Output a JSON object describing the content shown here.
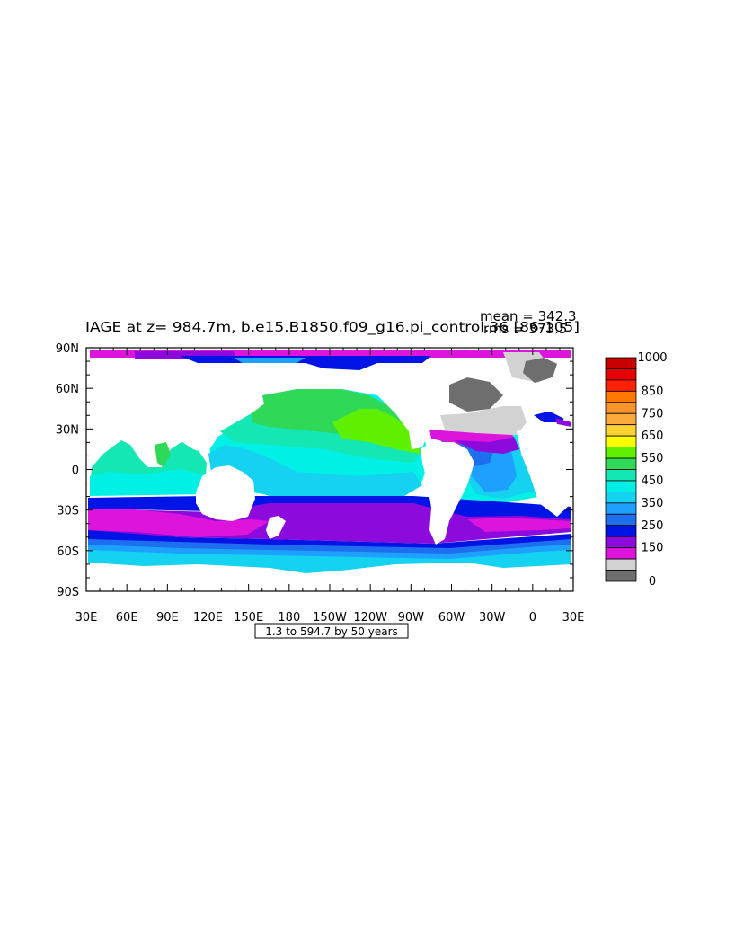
{
  "title": "IAGE at z= 984.7m, b.e15.B1850.f09_g16.pi_control.36 [86-105]",
  "stats": {
    "mean": "mean = 342.3",
    "rms": "rms = 373.5"
  },
  "map": {
    "projection": "cylindrical equidistant",
    "lon_range": [
      30,
      390
    ],
    "lat_range": [
      -90,
      90
    ],
    "lat_labels": [
      "90N",
      "60N",
      "30N",
      "0",
      "30S",
      "60S",
      "90S"
    ],
    "lat_values": [
      90,
      60,
      30,
      0,
      -30,
      -60,
      -90
    ],
    "lon_labels": [
      "30E",
      "60E",
      "90E",
      "120E",
      "150E",
      "180",
      "150W",
      "120W",
      "90W",
      "60W",
      "30W",
      "0",
      "30E"
    ],
    "lon_values": [
      30,
      60,
      90,
      120,
      150,
      180,
      210,
      240,
      270,
      300,
      330,
      360,
      390
    ],
    "land_color": "#ffffff"
  },
  "contour_info": "1.3 to 594.7 by 50 years",
  "colorbar": {
    "labels": [
      {
        "text": "1000",
        "value": 1000
      },
      {
        "text": "850",
        "value": 850
      },
      {
        "text": "750",
        "value": 750
      },
      {
        "text": "650",
        "value": 650
      },
      {
        "text": "550",
        "value": 550
      },
      {
        "text": "450",
        "value": 450
      },
      {
        "text": "350",
        "value": 350
      },
      {
        "text": "250",
        "value": 250
      },
      {
        "text": "150",
        "value": 150
      },
      {
        "text": "0",
        "value": 0
      }
    ],
    "bins": [
      {
        "range": [
          950,
          1000
        ],
        "color": "#c80000"
      },
      {
        "range": [
          900,
          950
        ],
        "color": "#e60000"
      },
      {
        "range": [
          850,
          900
        ],
        "color": "#ff2000"
      },
      {
        "range": [
          800,
          850
        ],
        "color": "#ff7800"
      },
      {
        "range": [
          750,
          800
        ],
        "color": "#f89428"
      },
      {
        "range": [
          700,
          750
        ],
        "color": "#fbaa3c"
      },
      {
        "range": [
          650,
          700
        ],
        "color": "#ffd230"
      },
      {
        "range": [
          600,
          650
        ],
        "color": "#ffff00"
      },
      {
        "range": [
          550,
          600
        ],
        "color": "#5ef000"
      },
      {
        "range": [
          500,
          550
        ],
        "color": "#30d858"
      },
      {
        "range": [
          450,
          500
        ],
        "color": "#14e6b4"
      },
      {
        "range": [
          400,
          450
        ],
        "color": "#00f0e6"
      },
      {
        "range": [
          350,
          400
        ],
        "color": "#14d2f0"
      },
      {
        "range": [
          300,
          350
        ],
        "color": "#1ea0ff"
      },
      {
        "range": [
          250,
          300
        ],
        "color": "#1e6ef0"
      },
      {
        "range": [
          200,
          250
        ],
        "color": "#0014e6"
      },
      {
        "range": [
          150,
          200
        ],
        "color": "#8c0adc"
      },
      {
        "range": [
          100,
          150
        ],
        "color": "#dc14dc"
      },
      {
        "range": [
          50,
          100
        ],
        "color": "#d2d2d2"
      },
      {
        "range": [
          0,
          50
        ],
        "color": "#6e6e6e"
      }
    ]
  }
}
